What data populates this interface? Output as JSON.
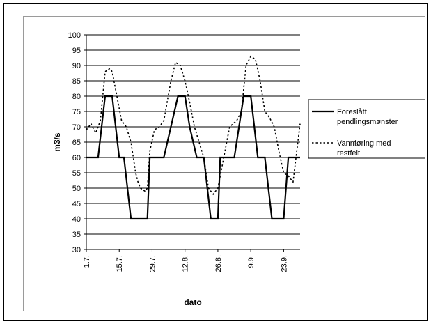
{
  "chart_data": {
    "type": "line",
    "xlabel": "dato",
    "ylabel": "m3/s",
    "ylim": [
      30,
      100
    ],
    "yticks": [
      30,
      35,
      40,
      45,
      50,
      55,
      60,
      65,
      70,
      75,
      80,
      85,
      90,
      95,
      100
    ],
    "x_tick_labels": [
      "1.7.",
      "15.7.",
      "29.7.",
      "12.8.",
      "26.8.",
      "9.9.",
      "23.9."
    ],
    "grid": "horizontal",
    "legend_position": "right",
    "series": [
      {
        "name": "Foreslått pendlingsmønster",
        "style": "solid",
        "color": "#000000",
        "x": [
          "1.7.",
          "6.7.",
          "9.7.",
          "12.7.",
          "15.7.",
          "17.7.",
          "20.7.",
          "23.7.",
          "27.7.",
          "28.7.",
          "3.8.",
          "9.8.",
          "12.8.",
          "14.8.",
          "17.8.",
          "20.8.",
          "23.8.",
          "26.8.",
          "27.8.",
          "2.9.",
          "6.9.",
          "9.9.",
          "12.9.",
          "15.9.",
          "18.9.",
          "20.9.",
          "23.9.",
          "25.9.",
          "30.9."
        ],
        "values": [
          60,
          60,
          80,
          80,
          60,
          60,
          40,
          40,
          40,
          60,
          60,
          80,
          80,
          70,
          60,
          60,
          40,
          40,
          60,
          60,
          80,
          80,
          60,
          60,
          40,
          40,
          40,
          60,
          60
        ]
      },
      {
        "name": "Vannføring med restfelt",
        "style": "dashed",
        "color": "#000000",
        "x": [
          "1.7.",
          "3.7.",
          "5.7.",
          "7.7.",
          "8.7.",
          "9.7.",
          "11.7.",
          "12.7.",
          "14.7.",
          "16.7.",
          "18.7.",
          "20.7.",
          "22.7.",
          "23.7.",
          "24.7.",
          "26.7.",
          "27.7.",
          "28.7.",
          "30.7.",
          "1.8.",
          "3.8.",
          "6.8.",
          "8.8.",
          "10.8.",
          "12.8.",
          "14.8.",
          "16.8.",
          "18.8.",
          "20.8.",
          "22.8.",
          "24.8.",
          "26.8.",
          "28.8.",
          "31.8.",
          "3.9.",
          "5.9.",
          "7.9.",
          "9.9.",
          "11.9.",
          "13.9.",
          "15.9.",
          "17.9.",
          "19.9.",
          "21.9.",
          "23.9.",
          "25.9.",
          "27.9.",
          "30.9."
        ],
        "values": [
          69,
          71,
          68,
          72,
          80,
          88,
          89,
          88,
          80,
          72,
          70,
          65,
          55,
          52,
          50,
          49,
          50,
          62,
          69,
          70,
          72,
          85,
          91,
          90,
          85,
          78,
          70,
          65,
          60,
          50,
          48,
          50,
          58,
          70,
          72,
          75,
          90,
          93,
          92,
          85,
          75,
          73,
          70,
          62,
          55,
          54,
          52,
          71
        ]
      }
    ]
  }
}
